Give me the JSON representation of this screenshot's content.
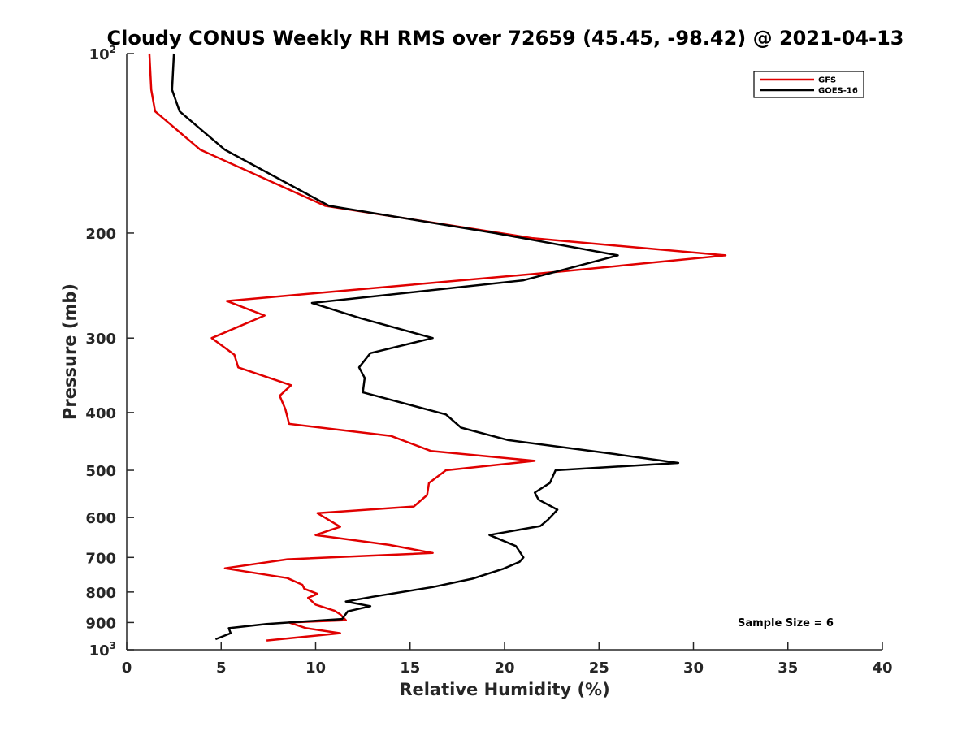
{
  "chart_data": {
    "type": "line",
    "title": "Cloudy CONUS Weekly RH RMS over 72659 (45.45, -98.42) @ 2021-04-13",
    "xlabel": "Relative Humidity (%)",
    "ylabel": "Pressure (mb)",
    "xlim": [
      0,
      40
    ],
    "ylim": [
      100,
      1000
    ],
    "yscale": "log",
    "y_reversed": true,
    "x_ticks": [
      "0",
      "5",
      "10",
      "15",
      "20",
      "25",
      "30",
      "35",
      "40"
    ],
    "y_ticks": [
      {
        "value": 100,
        "base": "10",
        "exp": "2"
      },
      {
        "value": 200,
        "label": "200"
      },
      {
        "value": 300,
        "label": "300"
      },
      {
        "value": 400,
        "label": "400"
      },
      {
        "value": 500,
        "label": "500"
      },
      {
        "value": 600,
        "label": "600"
      },
      {
        "value": 700,
        "label": "700"
      },
      {
        "value": 800,
        "label": "800"
      },
      {
        "value": 900,
        "label": "900"
      },
      {
        "value": 1000,
        "base": "10",
        "exp": "3"
      }
    ],
    "grid": false,
    "legend_position": "top-right",
    "annotation": "Sample Size = 6",
    "series": [
      {
        "name": "GFS",
        "color": "#e00000",
        "points": [
          [
            1.2,
            100
          ],
          [
            1.3,
            115
          ],
          [
            1.5,
            125
          ],
          [
            3.9,
            145
          ],
          [
            10.5,
            180
          ],
          [
            21.5,
            204
          ],
          [
            31.7,
            218
          ],
          [
            23.0,
            232
          ],
          [
            5.3,
            260
          ],
          [
            7.3,
            275
          ],
          [
            4.5,
            300
          ],
          [
            5.7,
            320
          ],
          [
            5.9,
            336
          ],
          [
            8.7,
            360
          ],
          [
            8.1,
            375
          ],
          [
            8.4,
            395
          ],
          [
            8.6,
            418
          ],
          [
            14.0,
            438
          ],
          [
            16.1,
            464
          ],
          [
            21.6,
            482
          ],
          [
            16.9,
            500
          ],
          [
            16.0,
            525
          ],
          [
            15.9,
            550
          ],
          [
            15.2,
            575
          ],
          [
            10.1,
            590
          ],
          [
            11.3,
            622
          ],
          [
            10.0,
            642
          ],
          [
            13.9,
            667
          ],
          [
            16.2,
            688
          ],
          [
            8.5,
            705
          ],
          [
            5.2,
            730
          ],
          [
            8.5,
            758
          ],
          [
            9.3,
            778
          ],
          [
            9.4,
            790
          ],
          [
            10.1,
            806
          ],
          [
            9.6,
            818
          ],
          [
            10.0,
            840
          ],
          [
            11.0,
            860
          ],
          [
            11.3,
            872
          ],
          [
            11.6,
            892
          ],
          [
            8.6,
            900
          ],
          [
            9.5,
            920
          ],
          [
            11.3,
            938
          ],
          [
            7.4,
            965
          ]
        ]
      },
      {
        "name": "GOES-16",
        "color": "#000000",
        "points": [
          [
            2.5,
            100
          ],
          [
            2.4,
            115
          ],
          [
            2.8,
            125
          ],
          [
            5.2,
            145
          ],
          [
            10.7,
            180
          ],
          [
            19.5,
            200
          ],
          [
            26.0,
            218
          ],
          [
            21.0,
            240
          ],
          [
            9.8,
            262
          ],
          [
            12.4,
            278
          ],
          [
            16.2,
            300
          ],
          [
            12.9,
            318
          ],
          [
            12.3,
            336
          ],
          [
            12.6,
            350
          ],
          [
            12.5,
            370
          ],
          [
            16.9,
            403
          ],
          [
            17.7,
            424
          ],
          [
            20.2,
            445
          ],
          [
            25.9,
            470
          ],
          [
            29.2,
            486
          ],
          [
            22.7,
            500
          ],
          [
            22.4,
            525
          ],
          [
            21.6,
            545
          ],
          [
            21.8,
            560
          ],
          [
            22.8,
            582
          ],
          [
            22.3,
            605
          ],
          [
            21.9,
            620
          ],
          [
            19.2,
            642
          ],
          [
            20.6,
            670
          ],
          [
            21.0,
            700
          ],
          [
            20.8,
            712
          ],
          [
            19.9,
            732
          ],
          [
            18.3,
            760
          ],
          [
            16.2,
            785
          ],
          [
            13.0,
            815
          ],
          [
            11.6,
            830
          ],
          [
            12.9,
            845
          ],
          [
            11.7,
            862
          ],
          [
            11.4,
            888
          ],
          [
            7.4,
            905
          ],
          [
            5.4,
            920
          ],
          [
            5.5,
            938
          ],
          [
            4.7,
            960
          ]
        ]
      }
    ]
  }
}
